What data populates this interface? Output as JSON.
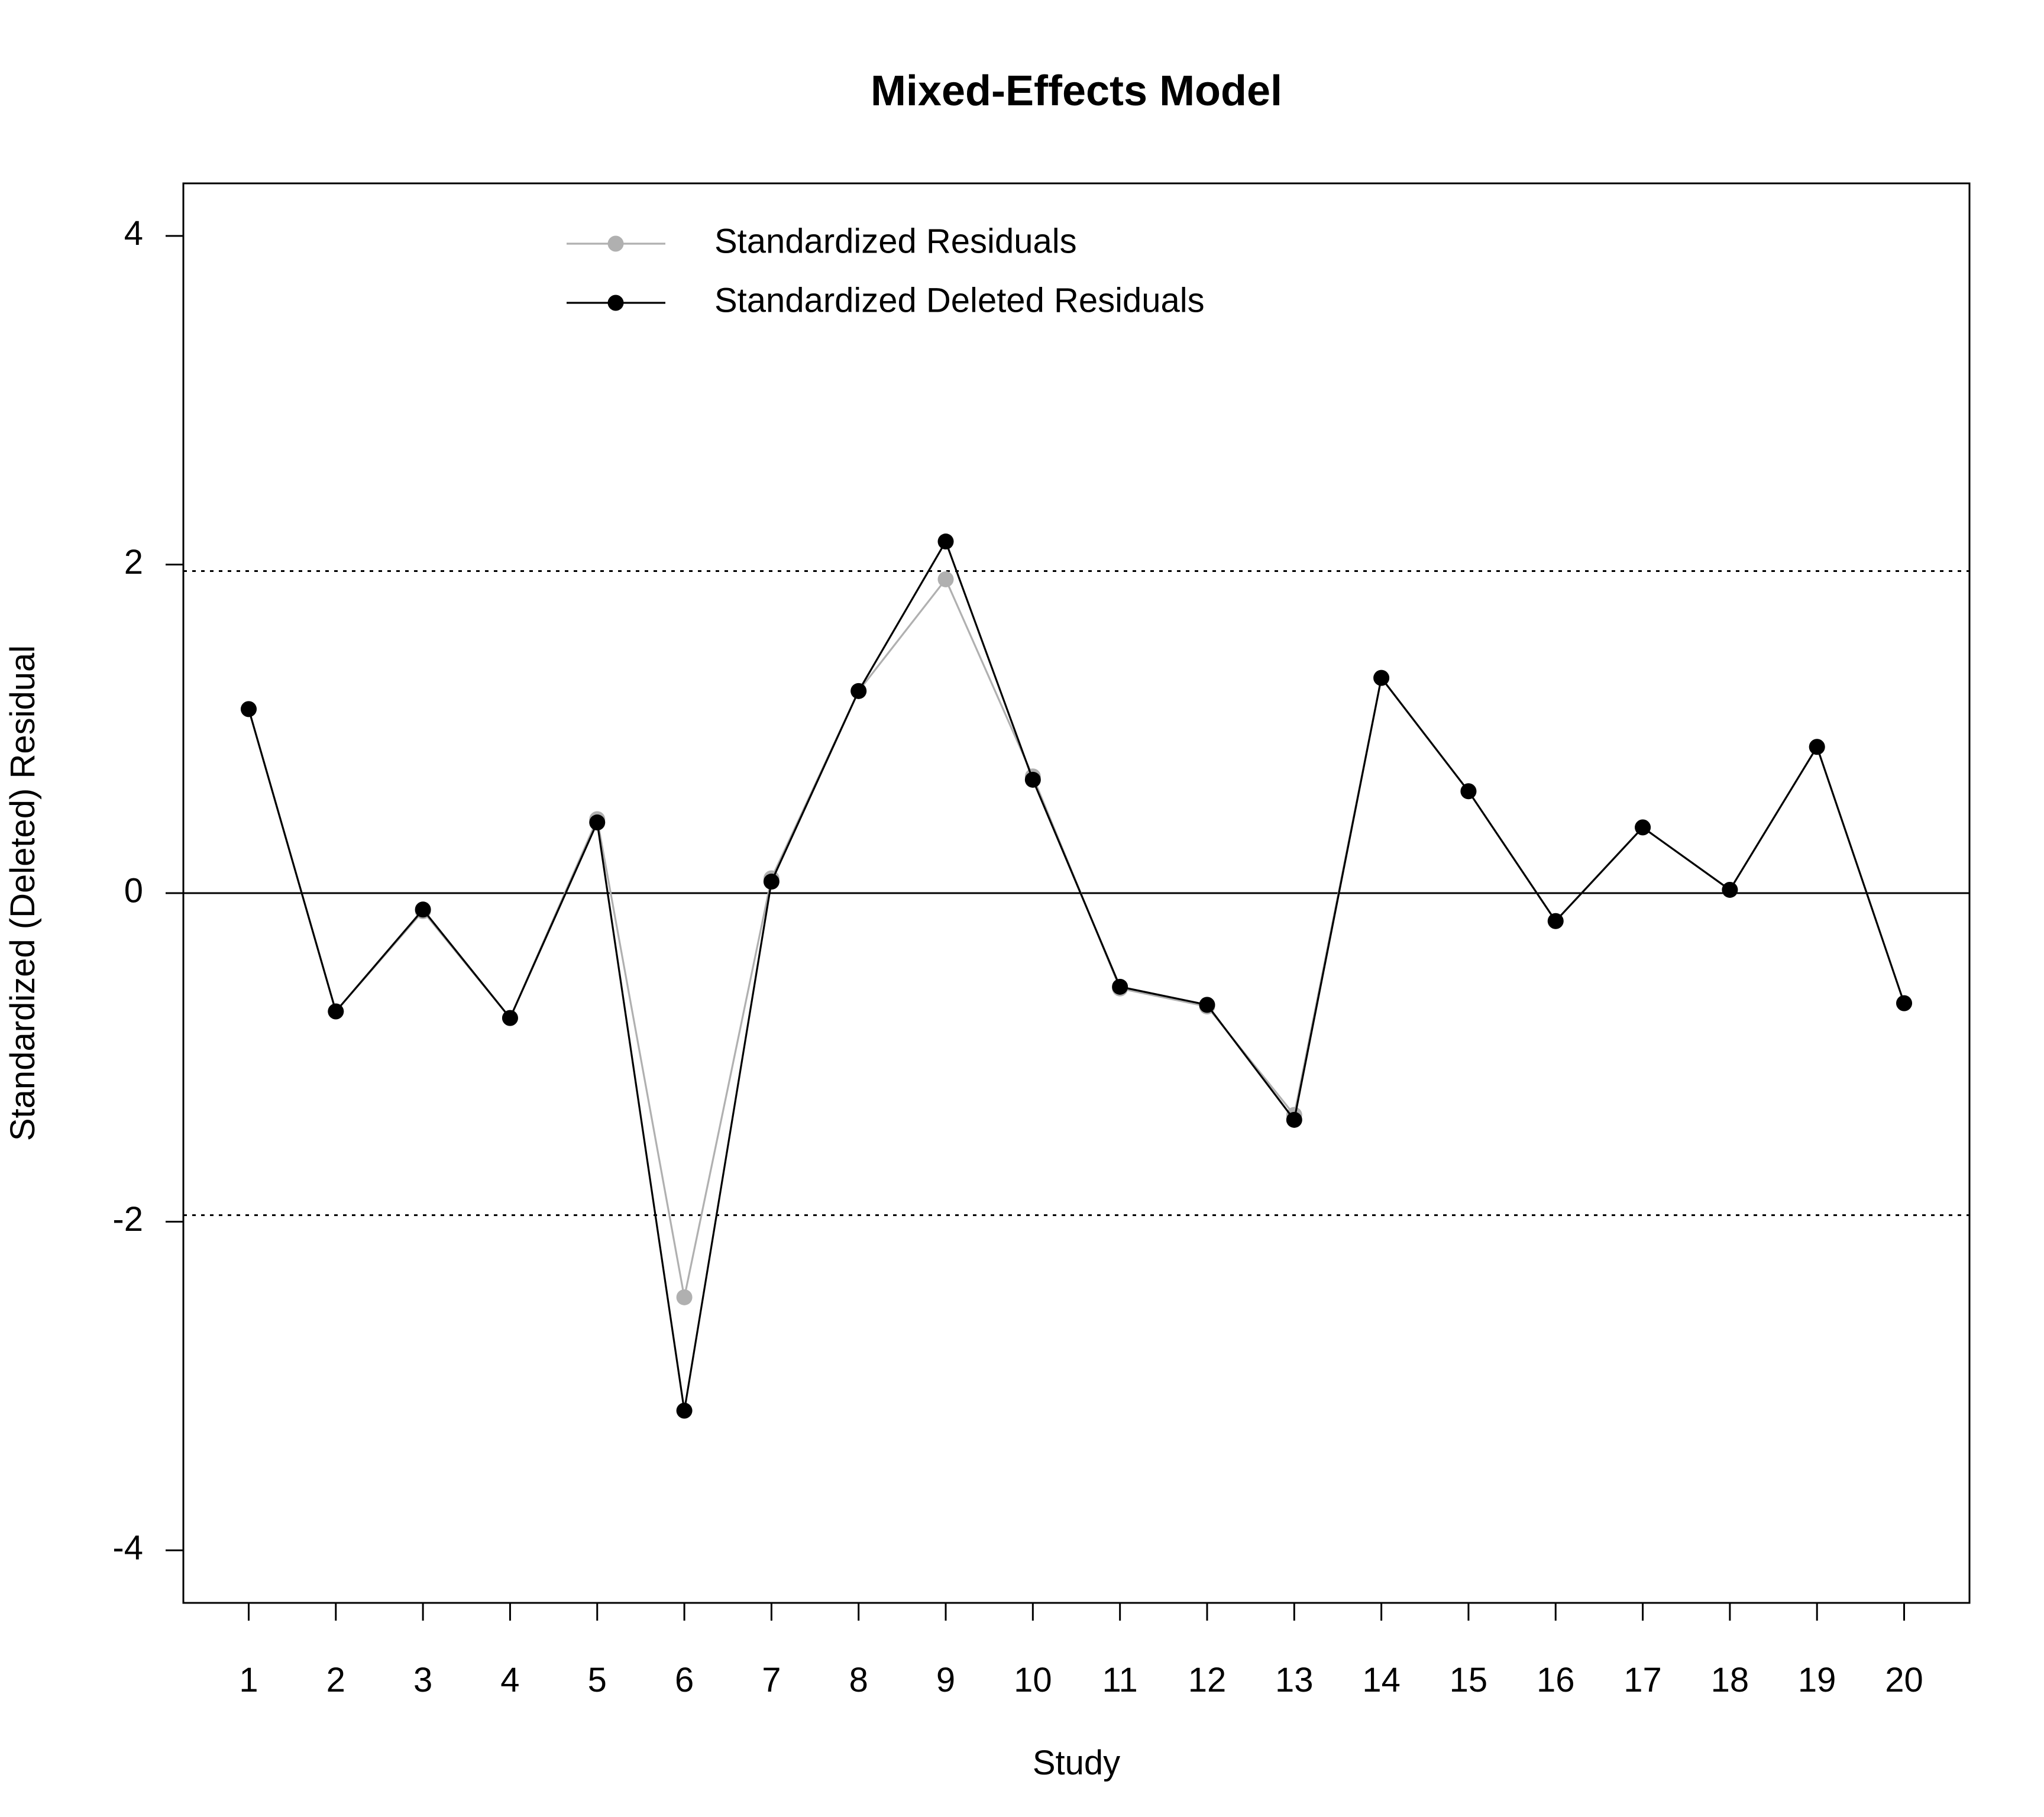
{
  "chart_data": {
    "type": "line",
    "title": "Mixed-Effects Model",
    "xlabel": "Study",
    "ylabel": "Standardized (Deleted) Residual",
    "x": [
      1,
      2,
      3,
      4,
      5,
      6,
      7,
      8,
      9,
      10,
      11,
      12,
      13,
      14,
      15,
      16,
      17,
      18,
      19,
      20
    ],
    "xlim": [
      0.25,
      20.75
    ],
    "ylim": [
      -4.32,
      4.32
    ],
    "yticks": [
      -4,
      -2,
      0,
      2,
      4
    ],
    "reference_lines": {
      "zero": 0,
      "lower_bound": -1.96,
      "upper_bound": 1.96
    },
    "series": [
      {
        "name": "Standardized Residuals",
        "color": "#b0b0b0",
        "values": [
          1.12,
          -0.72,
          -0.11,
          -0.76,
          0.45,
          -2.46,
          0.09,
          1.23,
          1.91,
          0.71,
          -0.58,
          -0.69,
          -1.35,
          1.31,
          0.62,
          -0.17,
          0.4,
          0.02,
          0.89,
          -0.67
        ]
      },
      {
        "name": "Standardized Deleted Residuals",
        "color": "#000000",
        "values": [
          1.12,
          -0.72,
          -0.1,
          -0.76,
          0.43,
          -3.15,
          0.07,
          1.23,
          2.14,
          0.69,
          -0.57,
          -0.68,
          -1.38,
          1.31,
          0.62,
          -0.17,
          0.4,
          0.02,
          0.89,
          -0.67
        ]
      }
    ],
    "legend_position": "top-center",
    "grid": false
  }
}
